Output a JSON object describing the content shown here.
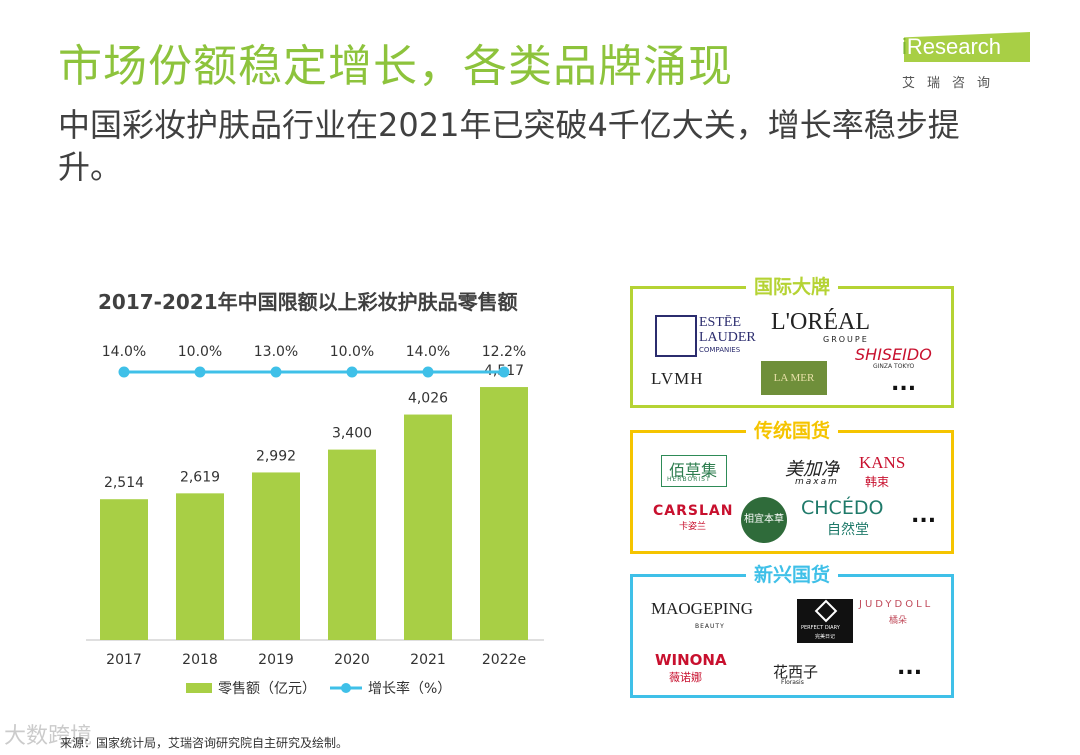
{
  "header": {
    "title": "市场份额稳定增长，各类品牌涌现",
    "subtitle": "中国彩妆护肤品行业在2021年已突破4千亿大关，增长率稳步提升。"
  },
  "logo": {
    "brand_i": "i",
    "brand_rest": "Research",
    "cn": "艾瑞咨询"
  },
  "chart_data": {
    "type": "bar",
    "title": "2017-2021年中国限额以上彩妆护肤品零售额",
    "categories": [
      "2017",
      "2018",
      "2019",
      "2020",
      "2021",
      "2022e"
    ],
    "series": [
      {
        "name": "零售额（亿元）",
        "type": "bar",
        "values": [
          2514,
          2619,
          2992,
          3400,
          4026,
          4517
        ],
        "labels": [
          "2,514",
          "2,619",
          "2,992",
          "3,400",
          "4,026",
          "4,517"
        ],
        "color": "#a8cf45"
      },
      {
        "name": "增长率（%）",
        "type": "line",
        "values": [
          14.0,
          10.0,
          13.0,
          10.0,
          14.0,
          12.2
        ],
        "labels": [
          "14.0%",
          "10.0%",
          "13.0%",
          "10.0%",
          "14.0%",
          "12.2%"
        ],
        "color": "#3fc0e8"
      }
    ],
    "ylim": [
      0,
      5000
    ],
    "legend_position": "bottom",
    "grid": false
  },
  "panels": [
    {
      "label": "国际大牌",
      "color": "#b5d334",
      "brands": {
        "estee1": "ESTĒE",
        "estee2": "LAUDER",
        "estee3": "COMPANIES",
        "loreal1": "L'ORÉAL",
        "loreal2": "GROUPE",
        "shiseido1": "SHISEIDO",
        "shiseido2": "GINZA TOKYO",
        "lvmh": "LVMH",
        "lamer": "LA MER",
        "more": "..."
      }
    },
    {
      "label": "传统国货",
      "color": "#f5c400",
      "brands": {
        "herb1": "佰草集",
        "herb2": "HERBORIST",
        "maxam1": "美加净",
        "maxam2": "maxam",
        "kans1": "KANS",
        "kans2": "韩束",
        "carslan1": "CARSLAN",
        "carslan2": "卡姿兰",
        "inoherb": "相宜本草",
        "chcedo1": "CHCÉDO",
        "chcedo2": "自然堂",
        "more": "..."
      }
    },
    {
      "label": "新兴国货",
      "color": "#3fc0e8",
      "brands": {
        "mao1": "MAOGEPING",
        "mao2": "BEAUTY",
        "pd1": "PERFECT DIARY",
        "pd2": "完美日记",
        "judy1": "JUDYDOLL",
        "judy2": "橘朵",
        "winona1": "WINONA",
        "winona2": "薇诺娜",
        "flor1": "花西子",
        "flor2": "Florasis",
        "more": "..."
      }
    }
  ],
  "source": "来源：国家统计局，艾瑞咨询研究院自主研究及绘制。",
  "watermark": "大数跨境"
}
